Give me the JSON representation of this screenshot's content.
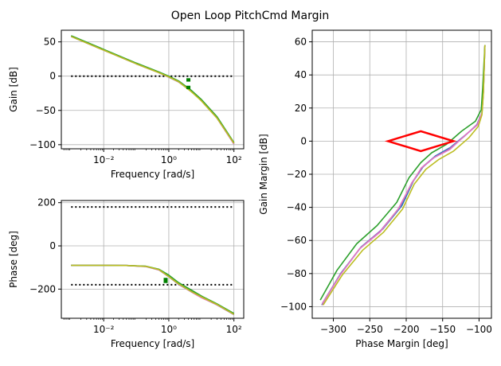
{
  "title": "Open Loop PitchCmd Margin",
  "colors": {
    "c1": "#1f77b4",
    "c2": "#9467bd",
    "c3": "#e377c2",
    "c4": "#2ca02c",
    "c5": "#bcbd22",
    "marker": "#008000",
    "diamond": "#ff0000",
    "ref": "#000000",
    "grid": "#b0b0b0"
  },
  "chart_data": [
    {
      "type": "line",
      "id": "gain",
      "xlabel": "Frequency [rad/s]",
      "ylabel": "Gain [dB]",
      "xscale": "log",
      "xlim": [
        0.0005,
        200
      ],
      "ylim": [
        -106,
        67
      ],
      "xticks": [
        0.01,
        1,
        100
      ],
      "xtick_labels": [
        "10⁻²",
        "10⁰",
        "10²"
      ],
      "yticks": [
        50,
        0,
        -50,
        -100
      ],
      "ytick_labels": [
        "50",
        "0",
        "−50",
        "−100"
      ],
      "grid": true,
      "reference_lines": [
        {
          "y": 0,
          "x": [
            0.001,
            100
          ],
          "style": "dotted"
        }
      ],
      "markers": [
        {
          "x": 4,
          "y": [
            -3,
            -8
          ]
        },
        {
          "x": 4,
          "y": [
            -14,
            -19
          ]
        }
      ],
      "series": [
        {
          "color_key": "c1",
          "x": [
            0.001,
            0.01,
            0.1,
            0.5,
            1,
            2,
            5,
            10,
            30,
            100
          ],
          "y": [
            58,
            38,
            18,
            5,
            -1,
            -8,
            -22,
            -35,
            -60,
            -98
          ]
        },
        {
          "color_key": "c2",
          "x": [
            0.001,
            0.01,
            0.1,
            0.5,
            1,
            2,
            5,
            10,
            30,
            100
          ],
          "y": [
            58,
            38,
            18,
            5,
            -1.5,
            -8.5,
            -22.5,
            -35.5,
            -61,
            -99
          ]
        },
        {
          "color_key": "c3",
          "x": [
            0.001,
            0.01,
            0.1,
            0.5,
            1,
            2,
            5,
            10,
            30,
            100
          ],
          "y": [
            58,
            38,
            18,
            5,
            -1,
            -8,
            -22,
            -36,
            -61,
            -99
          ]
        },
        {
          "color_key": "c4",
          "x": [
            0.001,
            0.01,
            0.1,
            0.5,
            1,
            2,
            5,
            10,
            30,
            100
          ],
          "y": [
            59,
            39,
            19,
            6,
            0,
            -7,
            -21,
            -34,
            -59,
            -97
          ]
        },
        {
          "color_key": "c5",
          "x": [
            0.001,
            0.01,
            0.1,
            0.5,
            1,
            2,
            5,
            10,
            30,
            100
          ],
          "y": [
            58,
            38,
            18,
            5,
            -1,
            -8,
            -23,
            -36,
            -61,
            -98
          ]
        }
      ]
    },
    {
      "type": "line",
      "id": "phase",
      "xlabel": "Frequency [rad/s]",
      "ylabel": "Phase [deg]",
      "xscale": "log",
      "xlim": [
        0.0005,
        200
      ],
      "ylim": [
        -335,
        210
      ],
      "xticks": [
        0.01,
        1,
        100
      ],
      "xtick_labels": [
        "10⁻²",
        "10⁰",
        "10²"
      ],
      "yticks": [
        200,
        0,
        -200
      ],
      "ytick_labels": [
        "200",
        "0",
        "−200"
      ],
      "grid": true,
      "reference_lines": [
        {
          "y": 180,
          "x": [
            0.001,
            100
          ],
          "style": "dotted"
        },
        {
          "y": -180,
          "x": [
            0.001,
            100
          ],
          "style": "dotted"
        }
      ],
      "markers": [
        {
          "x": 0.8,
          "y": [
            -148,
            -172
          ]
        }
      ],
      "series": [
        {
          "color_key": "c1",
          "x": [
            0.001,
            0.01,
            0.05,
            0.2,
            0.5,
            1,
            2,
            5,
            10,
            30,
            100
          ],
          "y": [
            -90,
            -90,
            -91,
            -95,
            -110,
            -140,
            -175,
            -210,
            -235,
            -270,
            -315
          ]
        },
        {
          "color_key": "c2",
          "x": [
            0.001,
            0.01,
            0.05,
            0.2,
            0.5,
            1,
            2,
            5,
            10,
            30,
            100
          ],
          "y": [
            -90,
            -90,
            -91,
            -96,
            -112,
            -143,
            -178,
            -213,
            -238,
            -273,
            -318
          ]
        },
        {
          "color_key": "c3",
          "x": [
            0.001,
            0.01,
            0.05,
            0.2,
            0.5,
            1,
            2,
            5,
            10,
            30,
            100
          ],
          "y": [
            -90,
            -90,
            -91,
            -95,
            -111,
            -141,
            -176,
            -214,
            -240,
            -272,
            -316
          ]
        },
        {
          "color_key": "c4",
          "x": [
            0.001,
            0.01,
            0.05,
            0.2,
            0.5,
            1,
            2,
            5,
            10,
            30,
            100
          ],
          "y": [
            -90,
            -90,
            -91,
            -94,
            -108,
            -135,
            -170,
            -205,
            -232,
            -268,
            -313
          ]
        },
        {
          "color_key": "c5",
          "x": [
            0.001,
            0.01,
            0.05,
            0.2,
            0.5,
            1,
            2,
            5,
            10,
            30,
            100
          ],
          "y": [
            -90,
            -90,
            -91,
            -95,
            -110,
            -142,
            -176,
            -212,
            -236,
            -271,
            -317
          ]
        }
      ]
    },
    {
      "type": "line",
      "id": "nichols",
      "xlabel": "Phase Margin [deg]",
      "ylabel": "Gain Margin [dB]",
      "xscale": "linear",
      "xlim": [
        -329,
        -83
      ],
      "ylim": [
        -107,
        67
      ],
      "xticks": [
        -300,
        -250,
        -200,
        -150,
        -100
      ],
      "xtick_labels": [
        "−300",
        "−250",
        "−200",
        "−150",
        "−100"
      ],
      "yticks": [
        60,
        40,
        20,
        0,
        -20,
        -40,
        -60,
        -80,
        -100
      ],
      "ytick_labels": [
        "60",
        "40",
        "20",
        "0",
        "−20",
        "−40",
        "−60",
        "−80",
        "−100"
      ],
      "grid": true,
      "diamond": [
        [
          -225,
          0
        ],
        [
          -180,
          6
        ],
        [
          -135,
          0
        ],
        [
          -180,
          -6
        ]
      ],
      "series": [
        {
          "color_key": "c1",
          "x": [
            -315,
            -290,
            -262,
            -232,
            -206,
            -190,
            -176,
            -160,
            -140,
            -118,
            -102,
            -96,
            -94,
            -92
          ],
          "y": [
            -98,
            -80,
            -64,
            -53,
            -39,
            -24,
            -15,
            -9,
            -4,
            4,
            10,
            17,
            30,
            58
          ]
        },
        {
          "color_key": "c2",
          "x": [
            -316,
            -291,
            -264,
            -235,
            -209,
            -192,
            -178,
            -162,
            -142,
            -120,
            -103,
            -96,
            -94,
            -92
          ],
          "y": [
            -99,
            -81,
            -65,
            -54,
            -40,
            -25,
            -16,
            -10,
            -5,
            3,
            10,
            17,
            30,
            58
          ]
        },
        {
          "color_key": "c3",
          "x": [
            -315,
            -291,
            -264,
            -236,
            -211,
            -193,
            -179,
            -162,
            -140,
            -118,
            -102,
            -96,
            -94,
            -92
          ],
          "y": [
            -98,
            -81,
            -65,
            -55,
            -41,
            -26,
            -16,
            -10,
            -5,
            4,
            10,
            17,
            30,
            58
          ]
        },
        {
          "color_key": "c4",
          "x": [
            -318,
            -295,
            -268,
            -240,
            -213,
            -196,
            -180,
            -165,
            -145,
            -124,
            -105,
            -97,
            -95,
            -92
          ],
          "y": [
            -96,
            -78,
            -62,
            -51,
            -37,
            -22,
            -13,
            -7,
            -2,
            6,
            12,
            19,
            32,
            58
          ]
        },
        {
          "color_key": "c5",
          "x": [
            -314,
            -288,
            -260,
            -231,
            -205,
            -189,
            -173,
            -155,
            -135,
            -114,
            -101,
            -96,
            -94,
            -92
          ],
          "y": [
            -99,
            -81,
            -66,
            -55,
            -41,
            -26,
            -17,
            -11,
            -6,
            2,
            9,
            16,
            29,
            58
          ]
        }
      ]
    }
  ]
}
